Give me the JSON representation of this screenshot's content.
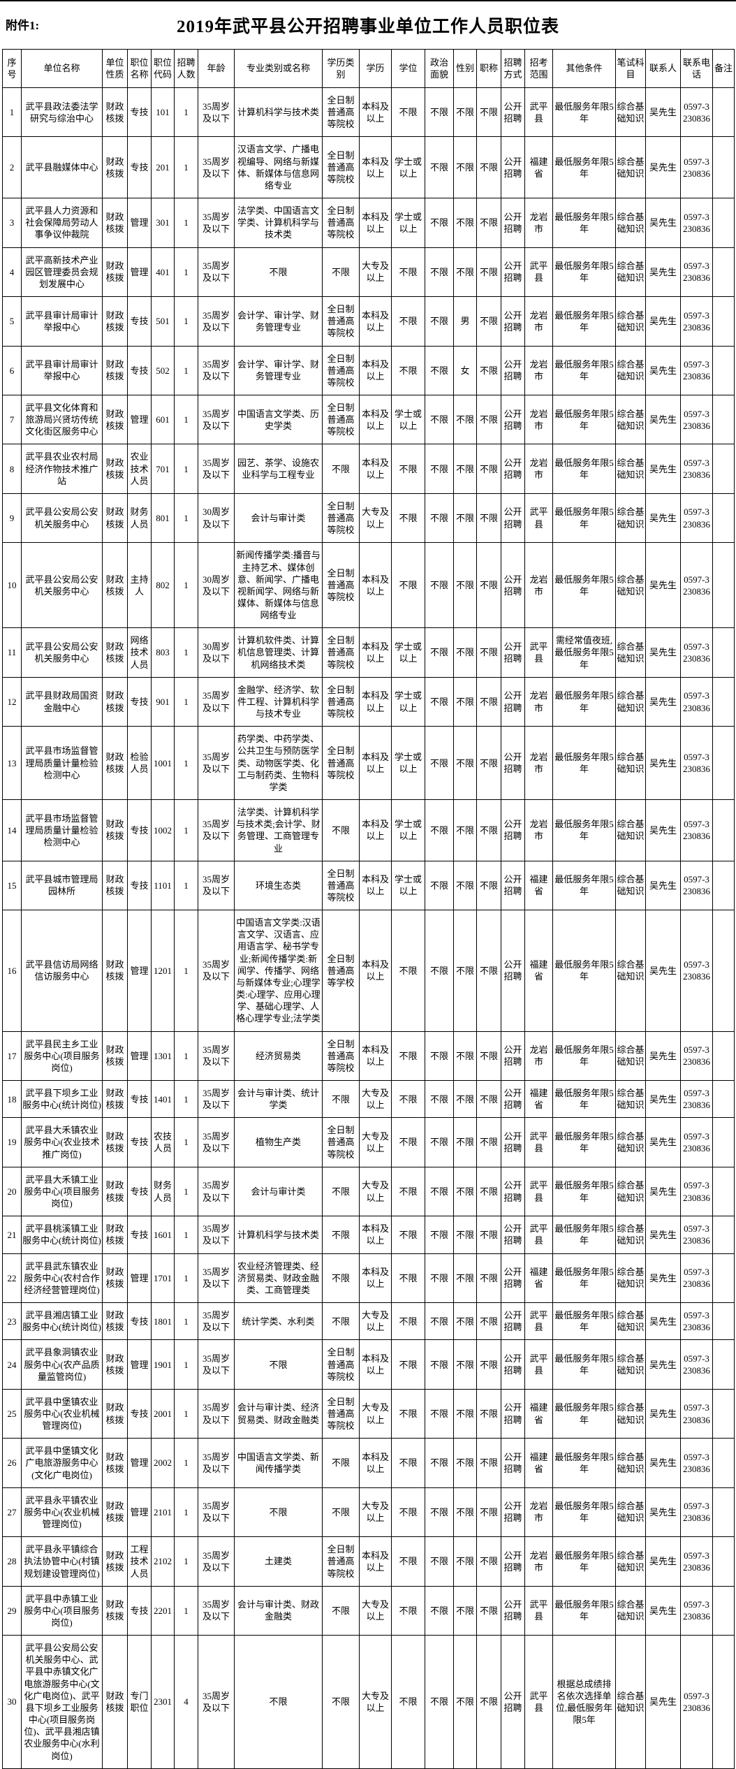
{
  "page": {
    "attachment_label": "附件1:",
    "title": "2019年武平县公开招聘事业单位工作人员职位表"
  },
  "table": {
    "headers": [
      "序号",
      "单位名称",
      "单位性质",
      "职位名称",
      "职位代码",
      "招聘人数",
      "年龄",
      "专业类别或名称",
      "学历类别",
      "学历",
      "学位",
      "政治面貌",
      "性别",
      "职称",
      "招聘方式",
      "招考范围",
      "其他条件",
      "笔试科目",
      "联系人",
      "联系电话",
      "备注"
    ],
    "bold_cells": [
      [
        29,
        3
      ]
    ],
    "rows": [
      [
        "1",
        "武平县政法委法学研究与综治中心",
        "财政核拨",
        "专技",
        "101",
        "1",
        "35周岁及以下",
        "计算机科学与技术类",
        "全日制普通高等院校",
        "本科及以上",
        "不限",
        "不限",
        "不限",
        "不限",
        "公开招聘",
        "武平县",
        "最低服务年限5年",
        "综合基础知识",
        "吴先生",
        "0597-3230836",
        ""
      ],
      [
        "2",
        "武平县融媒体中心",
        "财政核拨",
        "专技",
        "201",
        "1",
        "35周岁及以下",
        "汉语言文学、广播电视编导、网络与新媒体、新媒体与信息网络专业",
        "全日制普通高等院校",
        "本科及以上",
        "学士或以上",
        "不限",
        "不限",
        "不限",
        "公开招聘",
        "福建省",
        "最低服务年限5年",
        "综合基础知识",
        "吴先生",
        "0597-3230836",
        ""
      ],
      [
        "3",
        "武平县人力资源和社会保障局劳动人事争议仲裁院",
        "财政核拨",
        "管理",
        "301",
        "1",
        "35周岁及以下",
        "法学类、中国语言文学类、计算机科学与技术类",
        "全日制普通高等院校",
        "本科及以上",
        "学士或以上",
        "不限",
        "不限",
        "不限",
        "公开招聘",
        "龙岩市",
        "最低服务年限5年",
        "综合基础知识",
        "吴先生",
        "0597-3230836",
        ""
      ],
      [
        "4",
        "武平高新技术产业园区管理委员会规划发展中心",
        "财政核拨",
        "管理",
        "401",
        "1",
        "35周岁及以下",
        "不限",
        "不限",
        "大专及以上",
        "不限",
        "不限",
        "不限",
        "不限",
        "公开招聘",
        "武平县",
        "最低服务年限5年",
        "综合基础知识",
        "吴先生",
        "0597-3230836",
        ""
      ],
      [
        "5",
        "武平县审计局审计举报中心",
        "财政核拨",
        "专技",
        "501",
        "1",
        "35周岁及以下",
        "会计学、审计学、财务管理专业",
        "全日制普通高等院校",
        "本科及以上",
        "不限",
        "不限",
        "男",
        "不限",
        "公开招聘",
        "龙岩市",
        "最低服务年限5年",
        "综合基础知识",
        "吴先生",
        "0597-3230836",
        ""
      ],
      [
        "6",
        "武平县审计局审计举报中心",
        "财政核拨",
        "专技",
        "502",
        "1",
        "35周岁及以下",
        "会计学、审计学、财务管理专业",
        "全日制普通高等院校",
        "本科及以上",
        "不限",
        "不限",
        "女",
        "不限",
        "公开招聘",
        "龙岩市",
        "最低服务年限5年",
        "综合基础知识",
        "吴先生",
        "0597-3230836",
        ""
      ],
      [
        "7",
        "武平县文化体育和旅游局兴贤坊传统文化街区服务中心",
        "财政核拨",
        "管理",
        "601",
        "1",
        "35周岁及以下",
        "中国语言文学类、历史学类",
        "全日制普通高等院校",
        "本科及以上",
        "学士或以上",
        "不限",
        "不限",
        "不限",
        "公开招聘",
        "龙岩市",
        "最低服务年限5年",
        "综合基础知识",
        "吴先生",
        "0597-3230836",
        ""
      ],
      [
        "8",
        "武平县农业农村局经济作物技术推广站",
        "财政核拨",
        "农业技术人员",
        "701",
        "1",
        "35周岁及以下",
        "园艺、茶学、设施农业科学与工程专业",
        "不限",
        "本科及以上",
        "不限",
        "不限",
        "不限",
        "不限",
        "公开招聘",
        "龙岩市",
        "最低服务年限5年",
        "综合基础知识",
        "吴先生",
        "0597-3230836",
        ""
      ],
      [
        "9",
        "武平县公安局公安机关服务中心",
        "财政核拨",
        "财务人员",
        "801",
        "1",
        "30周岁及以下",
        "会计与审计类",
        "全日制普通高等院校",
        "大专及以上",
        "不限",
        "不限",
        "不限",
        "不限",
        "公开招聘",
        "武平县",
        "最低服务年限5年",
        "综合基础知识",
        "吴先生",
        "0597-3230836",
        ""
      ],
      [
        "10",
        "武平县公安局公安机关服务中心",
        "财政核拨",
        "主持人",
        "802",
        "1",
        "30周岁及以下",
        "新闻传播学类:播音与主持艺术、媒体创意、新闻学、广播电视新闻学、网络与新媒体、新媒体与信息网络专业",
        "全日制普通高等院校",
        "本科及以上",
        "不限",
        "不限",
        "不限",
        "不限",
        "公开招聘",
        "龙岩市",
        "最低服务年限5年",
        "综合基础知识",
        "吴先生",
        "0597-3230836",
        ""
      ],
      [
        "11",
        "武平县公安局公安机关服务中心",
        "财政核拨",
        "网络技术人员",
        "803",
        "1",
        "30周岁及以下",
        "计算机软件类、计算机信息管理类、计算机网络技术类",
        "全日制普通高等院校",
        "本科及以上",
        "学士或以上",
        "不限",
        "不限",
        "不限",
        "公开招聘",
        "武平县",
        "需经常值夜班,最低服务年限5年",
        "综合基础知识",
        "吴先生",
        "0597-3230836",
        ""
      ],
      [
        "12",
        "武平县财政局国资金融中心",
        "财政核拨",
        "专技",
        "901",
        "1",
        "35周岁及以下",
        "金融学、经济学、软件工程、计算机科学与技术专业",
        "全日制普通高等院校",
        "本科及以上",
        "学士或以上",
        "不限",
        "不限",
        "不限",
        "公开招聘",
        "龙岩市",
        "最低服务年限5年",
        "综合基础知识",
        "吴先生",
        "0597-3230836",
        ""
      ],
      [
        "13",
        "武平县市场监督管理局质量计量检验检测中心",
        "财政核拨",
        "检验人员",
        "1001",
        "1",
        "35周岁及以下",
        "药学类、中药学类、公共卫生与预防医学类、动物医学类、化工与制药类、生物科学类",
        "全日制普通高等院校",
        "本科及以上",
        "学士或以上",
        "不限",
        "不限",
        "不限",
        "公开招聘",
        "龙岩市",
        "最低服务年限5年",
        "综合基础知识",
        "吴先生",
        "0597-3230836",
        ""
      ],
      [
        "14",
        "武平县市场监督管理局质量计量检验检测中心",
        "财政核拨",
        "专技",
        "1002",
        "1",
        "35周岁及以下",
        "法学类、计算机科学与技术类;会计学、财务管理、工商管理专业",
        "不限",
        "本科及以上",
        "学士或以上",
        "不限",
        "不限",
        "不限",
        "公开招聘",
        "龙岩市",
        "最低服务年限5年",
        "综合基础知识",
        "吴先生",
        "0597-3230836",
        ""
      ],
      [
        "15",
        "武平县城市管理局园林所",
        "财政核拨",
        "专技",
        "1101",
        "1",
        "35周岁及以下",
        "环境生态类",
        "全日制普通高等院校",
        "本科及以上",
        "学士或以上",
        "不限",
        "不限",
        "不限",
        "公开招聘",
        "福建省",
        "最低服务年限5年",
        "综合基础知识",
        "吴先生",
        "0597-3230836",
        ""
      ],
      [
        "16",
        "武平县信访局网络信访服务中心",
        "财政核拨",
        "管理",
        "1201",
        "1",
        "35周岁及以下",
        "中国语言文学类:汉语言文学、汉语言、应用语言学、秘书学专业;新闻传播学类:新闻学、传播学、网络与新媒体专业;心理学类:心理学、应用心理学、基础心理学、人格心理学专业;法学类",
        "全日制普通高等学校",
        "本科及以上",
        "不限",
        "不限",
        "不限",
        "不限",
        "公开招聘",
        "福建省",
        "最低服务年限5年",
        "综合基础知识",
        "吴先生",
        "0597-3230836",
        ""
      ],
      [
        "17",
        "武平县民主乡工业服务中心(项目服务岗位)",
        "财政核拨",
        "管理",
        "1301",
        "1",
        "35周岁及以下",
        "经济贸易类",
        "全日制普通高等院校",
        "本科及以上",
        "不限",
        "不限",
        "不限",
        "不限",
        "公开招聘",
        "龙岩市",
        "最低服务年限5年",
        "综合基础知识",
        "吴先生",
        "0597-3230836",
        ""
      ],
      [
        "18",
        "武平县下坝乡工业服务中心(统计岗位)",
        "财政核拨",
        "专技",
        "1401",
        "1",
        "35周岁及以下",
        "会计与审计类、统计学类",
        "不限",
        "大专及以上",
        "不限",
        "不限",
        "不限",
        "不限",
        "公开招聘",
        "福建省",
        "最低服务年限5年",
        "综合基础知识",
        "吴先生",
        "0597-3230836",
        ""
      ],
      [
        "19",
        "武平县大禾镇农业服务中心(农业技术推广岗位)",
        "财政核拨",
        "专技",
        "农技人员",
        "1",
        "35周岁及以下",
        "植物生产类",
        "全日制普通高等院校",
        "大专及以上",
        "不限",
        "不限",
        "不限",
        "不限",
        "公开招聘",
        "武平县",
        "最低服务年限5年",
        "综合基础知识",
        "吴先生",
        "0597-3230836",
        ""
      ],
      [
        "20",
        "武平县大禾镇工业服务中心(项目服务岗位)",
        "财政核拨",
        "专技",
        "财务人员",
        "1",
        "35周岁及以下",
        "会计与审计类",
        "不限",
        "大专及以上",
        "不限",
        "不限",
        "不限",
        "不限",
        "公开招聘",
        "武平县",
        "最低服务年限5年",
        "综合基础知识",
        "吴先生",
        "0597-3230836",
        ""
      ],
      [
        "21",
        "武平县桃溪镇工业服务中心(统计岗位)",
        "财政核拨",
        "专技",
        "1601",
        "1",
        "35周岁及以下",
        "计算机科学与技术类",
        "不限",
        "本科及以上",
        "不限",
        "不限",
        "不限",
        "不限",
        "公开招聘",
        "武平县",
        "最低服务年限5年",
        "综合基础知识",
        "吴先生",
        "0597-3230836",
        ""
      ],
      [
        "22",
        "武平县武东镇农业服务中心(农村合作经济经营管理岗位)",
        "财政核拨",
        "管理",
        "1701",
        "1",
        "35周岁及以下",
        "农业经济管理类、经济贸易类、财政金融类、工商管理类",
        "不限",
        "本科及以上",
        "不限",
        "不限",
        "不限",
        "不限",
        "公开招聘",
        "福建省",
        "最低服务年限5年",
        "综合基础知识",
        "吴先生",
        "0597-3230836",
        ""
      ],
      [
        "23",
        "武平县湘店镇工业服务中心(统计岗位)",
        "财政核拨",
        "专技",
        "1801",
        "1",
        "35周岁及以下",
        "统计学类、水利类",
        "不限",
        "大专及以上",
        "不限",
        "不限",
        "不限",
        "不限",
        "公开招聘",
        "武平县",
        "最低服务年限5年",
        "综合基础知识",
        "吴先生",
        "0597-3230836",
        ""
      ],
      [
        "24",
        "武平县象洞镇农业服务中心(农产品质量监管岗位)",
        "财政核拨",
        "管理",
        "1901",
        "1",
        "35周岁及以下",
        "不限",
        "全日制普通高等院校",
        "本科及以上",
        "不限",
        "不限",
        "不限",
        "不限",
        "公开招聘",
        "武平县",
        "最低服务年限5年",
        "综合基础知识",
        "吴先生",
        "0597-3230836",
        ""
      ],
      [
        "25",
        "武平县中堡镇农业服务中心(农业机械管理岗位)",
        "财政核拨",
        "专技",
        "2001",
        "1",
        "35周岁及以下",
        "会计与审计类、经济贸易类、财政金融类",
        "全日制普通高等院校",
        "大专及以上",
        "不限",
        "不限",
        "不限",
        "不限",
        "公开招聘",
        "福建省",
        "最低服务年限5年",
        "综合基础知识",
        "吴先生",
        "0597-3230836",
        ""
      ],
      [
        "26",
        "武平县中堡镇文化广电旅游服务中心(文化广电岗位)",
        "财政核拨",
        "管理",
        "2002",
        "1",
        "35周岁及以下",
        "中国语言文学类、新闻传播学类",
        "不限",
        "本科及以上",
        "不限",
        "不限",
        "不限",
        "不限",
        "公开招聘",
        "福建省",
        "最低服务年限5年",
        "综合基础知识",
        "吴先生",
        "0597-3230836",
        ""
      ],
      [
        "27",
        "武平县永平镇农业服务中心(农业机械管理岗位)",
        "财政核拨",
        "管理",
        "2101",
        "1",
        "35周岁及以下",
        "不限",
        "不限",
        "大专及以上",
        "不限",
        "不限",
        "不限",
        "不限",
        "公开招聘",
        "龙岩市",
        "最低服务年限5年",
        "综合基础知识",
        "吴先生",
        "0597-3230836",
        ""
      ],
      [
        "28",
        "武平县永平镇综合执法协管中心(村镇规划建设管理岗位)",
        "财政核拨",
        "工程技术人员",
        "2102",
        "1",
        "35周岁及以下",
        "土建类",
        "全日制普通高等院校",
        "本科及以上",
        "不限",
        "不限",
        "不限",
        "不限",
        "公开招聘",
        "龙岩市",
        "最低服务年限5年",
        "综合基础知识",
        "吴先生",
        "0597-3230836",
        ""
      ],
      [
        "29",
        "武平县中赤镇工业服务中心(项目服务岗位)",
        "财政核拨",
        "专技",
        "2201",
        "1",
        "35周岁及以下",
        "会计与审计类、财政金融类",
        "不限",
        "大专及以上",
        "不限",
        "不限",
        "不限",
        "不限",
        "公开招聘",
        "武平县",
        "最低服务年限5年",
        "综合基础知识",
        "吴先生",
        "0597-3230836",
        ""
      ],
      [
        "30",
        "武平县公安局公安机关服务中心、武平县中赤镇文化广电旅游服务中心(文化广电岗位)、武平县下坝乡工业服务中心(项目服务岗位)、武平县湘店镇农业服务中心(水利岗位)",
        "财政核拨",
        "专门职位",
        "2301",
        "4",
        "35周岁及以下",
        "不限",
        "不限",
        "大专及以上",
        "不限",
        "不限",
        "不限",
        "不限",
        "公开招聘",
        "武平县",
        "根据总成绩排名依次选择单位,最低服务年限5年",
        "综合基础知识",
        "吴先生",
        "0597-3230836",
        ""
      ]
    ]
  }
}
